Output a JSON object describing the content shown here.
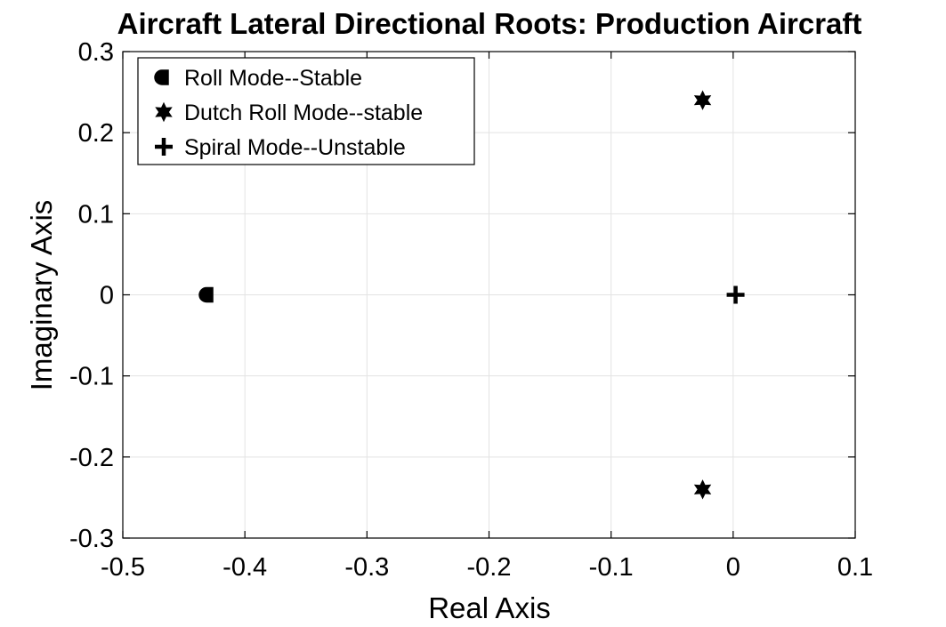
{
  "chart_data": {
    "type": "scatter",
    "title": "Aircraft Lateral Directional Roots: Production Aircraft",
    "xlabel": "Real Axis",
    "ylabel": "Imaginary Axis",
    "xlim": [
      -0.5,
      0.1
    ],
    "ylim": [
      -0.3,
      0.3
    ],
    "xticks": [
      -0.5,
      -0.4,
      -0.3,
      -0.2,
      -0.1,
      0,
      0.1
    ],
    "yticks": [
      -0.3,
      -0.2,
      -0.1,
      0,
      0.1,
      0.2,
      0.3
    ],
    "xtick_labels": [
      "-0.5",
      "-0.4",
      "-0.3",
      "-0.2",
      "-0.1",
      "0",
      "0.1"
    ],
    "ytick_labels": [
      "-0.3",
      "-0.2",
      "-0.1",
      "0",
      "0.1",
      "0.2",
      "0.3"
    ],
    "grid": true,
    "legend_position": "top-left",
    "marker_color": "#000000",
    "series": [
      {
        "name": "Roll Mode--Stable",
        "marker": "half-circle",
        "points": [
          [
            -0.43,
            0.0
          ]
        ]
      },
      {
        "name": "Dutch Roll Mode--stable",
        "marker": "hexagram",
        "points": [
          [
            -0.025,
            0.24
          ],
          [
            -0.025,
            -0.24
          ]
        ]
      },
      {
        "name": "Spiral Mode--Unstable",
        "marker": "plus",
        "points": [
          [
            0.002,
            0.0
          ]
        ]
      }
    ]
  }
}
